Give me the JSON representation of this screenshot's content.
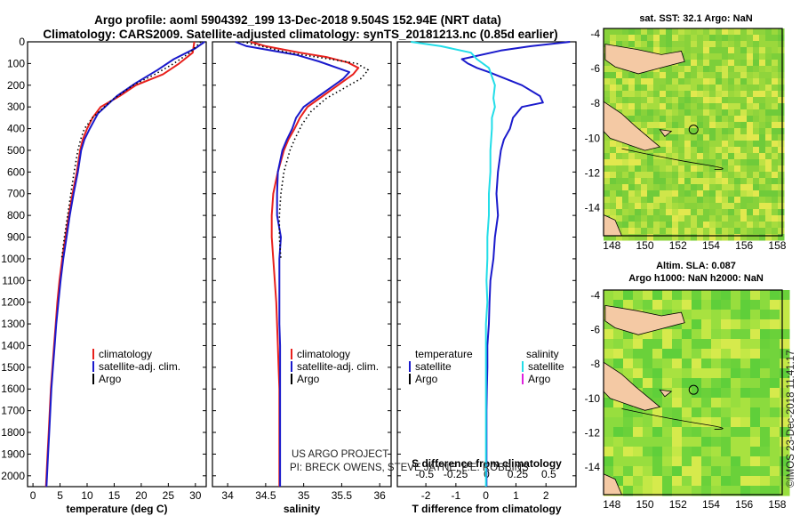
{
  "title_line1": "Argo profile: aoml 5904392_199 13-Dec-2018 9.504S 152.94E (NRT data)",
  "title_line2": "Climatology: CARS2009. Satellite-adjusted climatology: synTS_20181213.nc (0.85d earlier)",
  "colors": {
    "climatology": "#e8201c",
    "satellite": "#1a1acc",
    "argo": "#000000",
    "sat_salinity": "#22dde8",
    "argo_salinity": "#dd22dd"
  },
  "credits": {
    "line1": "US ARGO PROJECT",
    "line2": "PI: BRECK OWENS, STEVE JAYNE, P.E. ROBBINS"
  },
  "legend_tp": {
    "clim": "climatology",
    "sat": "satellite-adj. clim.",
    "argo": "Argo"
  },
  "legend_diff": {
    "temp_header": "temperature",
    "sal_header": "salinity",
    "sat": "satellite",
    "argo": "Argo"
  },
  "maps": {
    "sst_title": "sat. SST: 32.1 Argo: NaN",
    "sla_title1": "Altim. SLA: 0.087",
    "sla_title2": "Argo h1000: NaN h2000: NaN"
  },
  "watermark": "©IMOS 23-Dec-2018 11:41:17",
  "chart_data": [
    {
      "type": "line",
      "name": "temperature",
      "xlabel": "temperature (deg C)",
      "ylabel": "depth",
      "xlim": [
        -1,
        32
      ],
      "ylim": [
        2050,
        0
      ],
      "xticks": [
        0,
        5,
        10,
        15,
        20,
        25,
        30
      ],
      "yticks": [
        0,
        100,
        200,
        300,
        400,
        500,
        600,
        700,
        800,
        900,
        1000,
        1100,
        1200,
        1300,
        1400,
        1500,
        1600,
        1700,
        1800,
        1900,
        2000
      ],
      "series": [
        {
          "name": "climatology",
          "points": [
            [
              29.8,
              0
            ],
            [
              29.5,
              50
            ],
            [
              27,
              100
            ],
            [
              24,
              150
            ],
            [
              19,
              200
            ],
            [
              16,
              250
            ],
            [
              12.5,
              300
            ],
            [
              11,
              350
            ],
            [
              10,
              400
            ],
            [
              9.2,
              450
            ],
            [
              8.7,
              500
            ],
            [
              8.1,
              600
            ],
            [
              7.3,
              700
            ],
            [
              6.6,
              800
            ],
            [
              6,
              900
            ],
            [
              5.4,
              1000
            ],
            [
              4.9,
              1100
            ],
            [
              4.5,
              1200
            ],
            [
              4.2,
              1300
            ],
            [
              3.9,
              1400
            ],
            [
              3.6,
              1500
            ],
            [
              3.3,
              1600
            ],
            [
              3.1,
              1700
            ],
            [
              2.9,
              1800
            ],
            [
              2.7,
              1900
            ],
            [
              2.5,
              2000
            ],
            [
              2.4,
              2050
            ]
          ]
        },
        {
          "name": "satellite-adj. clim.",
          "points": [
            [
              31.7,
              0
            ],
            [
              30,
              30
            ],
            [
              26,
              80
            ],
            [
              23,
              130
            ],
            [
              19,
              190
            ],
            [
              15.5,
              250
            ],
            [
              12,
              330
            ],
            [
              10.5,
              400
            ],
            [
              9.5,
              450
            ],
            [
              8.9,
              500
            ],
            [
              8.3,
              600
            ],
            [
              7.5,
              700
            ],
            [
              6.8,
              800
            ],
            [
              6.2,
              900
            ],
            [
              5.6,
              1000
            ],
            [
              5.1,
              1100
            ],
            [
              4.7,
              1200
            ],
            [
              4.3,
              1300
            ],
            [
              4,
              1400
            ],
            [
              3.7,
              1500
            ],
            [
              3.4,
              1600
            ],
            [
              3.2,
              1700
            ],
            [
              3,
              1800
            ],
            [
              2.8,
              1900
            ],
            [
              2.6,
              2000
            ],
            [
              2.5,
              2050
            ]
          ]
        },
        {
          "name": "Argo",
          "dotted": true,
          "points": [
            [
              31,
              0
            ],
            [
              29,
              50
            ],
            [
              26,
              100
            ],
            [
              22.5,
              150
            ],
            [
              18.5,
              200
            ],
            [
              14.5,
              270
            ],
            [
              11,
              350
            ],
            [
              9.5,
              400
            ],
            [
              8.8,
              450
            ],
            [
              8.3,
              500
            ],
            [
              7.6,
              600
            ],
            [
              7,
              700
            ],
            [
              6.4,
              800
            ],
            [
              5.8,
              900
            ],
            [
              5.3,
              1000
            ]
          ]
        }
      ]
    },
    {
      "type": "line",
      "name": "salinity",
      "xlabel": "salinity",
      "ylabel": "depth",
      "xlim": [
        33.8,
        36.15
      ],
      "ylim": [
        2050,
        0
      ],
      "xticks": [
        34,
        34.5,
        35,
        35.5,
        36
      ],
      "series": [
        {
          "name": "climatology",
          "points": [
            [
              34.3,
              0
            ],
            [
              34.5,
              20
            ],
            [
              34.95,
              50
            ],
            [
              35.3,
              70
            ],
            [
              35.58,
              95
            ],
            [
              35.72,
              120
            ],
            [
              35.65,
              150
            ],
            [
              35.45,
              200
            ],
            [
              35.25,
              250
            ],
            [
              35.05,
              300
            ],
            [
              34.95,
              350
            ],
            [
              34.88,
              400
            ],
            [
              34.8,
              450
            ],
            [
              34.74,
              500
            ],
            [
              34.66,
              600
            ],
            [
              34.6,
              700
            ],
            [
              34.58,
              800
            ],
            [
              34.58,
              900
            ],
            [
              34.6,
              1000
            ],
            [
              34.62,
              1100
            ],
            [
              34.64,
              1200
            ],
            [
              34.65,
              1300
            ],
            [
              34.66,
              1400
            ],
            [
              34.67,
              1500
            ],
            [
              34.68,
              1600
            ],
            [
              34.68,
              1700
            ],
            [
              34.68,
              1800
            ],
            [
              34.68,
              1900
            ],
            [
              34.68,
              2000
            ],
            [
              34.68,
              2050
            ]
          ]
        },
        {
          "name": "satellite-adj. clim.",
          "points": [
            [
              34.1,
              0
            ],
            [
              34.25,
              20
            ],
            [
              34.9,
              60
            ],
            [
              35.2,
              90
            ],
            [
              35.6,
              140
            ],
            [
              35.52,
              170
            ],
            [
              35.4,
              200
            ],
            [
              35.2,
              250
            ],
            [
              35.0,
              300
            ],
            [
              34.9,
              350
            ],
            [
              34.85,
              400
            ],
            [
              34.78,
              450
            ],
            [
              34.72,
              500
            ],
            [
              34.66,
              600
            ],
            [
              34.65,
              700
            ],
            [
              34.65,
              800
            ],
            [
              34.7,
              900
            ],
            [
              34.68,
              1000
            ],
            [
              34.68,
              1100
            ],
            [
              34.68,
              1200
            ],
            [
              34.68,
              1300
            ],
            [
              34.69,
              1400
            ],
            [
              34.69,
              1500
            ],
            [
              34.69,
              1600
            ],
            [
              34.69,
              1700
            ],
            [
              34.69,
              1800
            ],
            [
              34.69,
              1900
            ],
            [
              34.69,
              2000
            ],
            [
              34.69,
              2050
            ]
          ]
        },
        {
          "name": "Argo",
          "dotted": true,
          "points": [
            [
              34.2,
              0
            ],
            [
              34.8,
              50
            ],
            [
              35.35,
              80
            ],
            [
              35.7,
              100
            ],
            [
              35.85,
              130
            ],
            [
              35.75,
              170
            ],
            [
              35.55,
              210
            ],
            [
              35.3,
              260
            ],
            [
              35.1,
              320
            ],
            [
              34.98,
              380
            ],
            [
              34.88,
              450
            ],
            [
              34.82,
              500
            ],
            [
              34.74,
              600
            ],
            [
              34.7,
              700
            ],
            [
              34.68,
              800
            ],
            [
              34.68,
              900
            ],
            [
              34.7,
              1000
            ]
          ]
        }
      ]
    },
    {
      "type": "line",
      "name": "difference",
      "xlabel": "T difference from climatology",
      "xlabel_top": "S difference from climatology",
      "xlim": [
        -2.95,
        3.0
      ],
      "ylim": [
        2050,
        0
      ],
      "xticks": [
        -2,
        -1,
        0,
        1,
        2
      ],
      "xticks_top": [
        -0.5,
        -0.25,
        0,
        0.25,
        0.5
      ],
      "series": [
        {
          "name": "temperature satellite",
          "points": [
            [
              2.8,
              0
            ],
            [
              1.5,
              20
            ],
            [
              0.5,
              40
            ],
            [
              -0.8,
              80
            ],
            [
              -0.6,
              100
            ],
            [
              -0.3,
              120
            ],
            [
              0.1,
              140
            ],
            [
              1.2,
              200
            ],
            [
              1.8,
              250
            ],
            [
              1.9,
              280
            ],
            [
              1.2,
              300
            ],
            [
              0.9,
              350
            ],
            [
              0.8,
              400
            ],
            [
              0.6,
              450
            ],
            [
              0.5,
              500
            ],
            [
              0.4,
              600
            ],
            [
              0.35,
              700
            ],
            [
              0.4,
              800
            ],
            [
              0.3,
              900
            ],
            [
              0.25,
              1000
            ],
            [
              0.15,
              1100
            ],
            [
              0.12,
              1200
            ],
            [
              0.1,
              1300
            ],
            [
              0.05,
              1400
            ],
            [
              0.05,
              1500
            ],
            [
              0.03,
              1600
            ],
            [
              0.02,
              1700
            ],
            [
              0.02,
              1800
            ],
            [
              0.02,
              1900
            ],
            [
              0.02,
              2000
            ],
            [
              0.02,
              2050
            ]
          ]
        },
        {
          "name": "salinity satellite",
          "points": [
            [
              -2.5,
              0
            ],
            [
              -1.5,
              20
            ],
            [
              -0.5,
              50
            ],
            [
              -0.3,
              80
            ],
            [
              0.1,
              120
            ],
            [
              0.2,
              160
            ],
            [
              0.3,
              200
            ],
            [
              0.25,
              260
            ],
            [
              0.3,
              300
            ],
            [
              0.2,
              350
            ],
            [
              0.2,
              400
            ],
            [
              0.15,
              500
            ],
            [
              0.15,
              600
            ],
            [
              0.1,
              700
            ],
            [
              0.1,
              800
            ],
            [
              0.05,
              900
            ],
            [
              0.05,
              1000
            ],
            [
              0.02,
              1100
            ],
            [
              0.05,
              1200
            ],
            [
              0.0,
              1300
            ],
            [
              0.0,
              1400
            ],
            [
              0.0,
              1500
            ],
            [
              0.0,
              1600
            ],
            [
              0.0,
              1700
            ],
            [
              0.0,
              1800
            ],
            [
              0.0,
              1900
            ],
            [
              0.0,
              2000
            ],
            [
              0.0,
              2050
            ]
          ]
        }
      ]
    },
    {
      "type": "heatmap",
      "name": "sat-sst-map",
      "xticks": [
        148,
        150,
        152,
        154,
        156,
        158
      ],
      "yticks": [
        -4,
        -6,
        -8,
        -10,
        -12,
        -14
      ],
      "xlim": [
        147.5,
        158.3
      ],
      "ylim": [
        -15.6,
        -3.7
      ]
    },
    {
      "type": "heatmap",
      "name": "altim-sla-map",
      "xticks": [
        148,
        150,
        152,
        154,
        156,
        158
      ],
      "yticks": [
        -4,
        -6,
        -8,
        -10,
        -12,
        -14
      ],
      "xlim": [
        147.5,
        158.3
      ],
      "ylim": [
        -15.6,
        -3.7
      ]
    }
  ]
}
